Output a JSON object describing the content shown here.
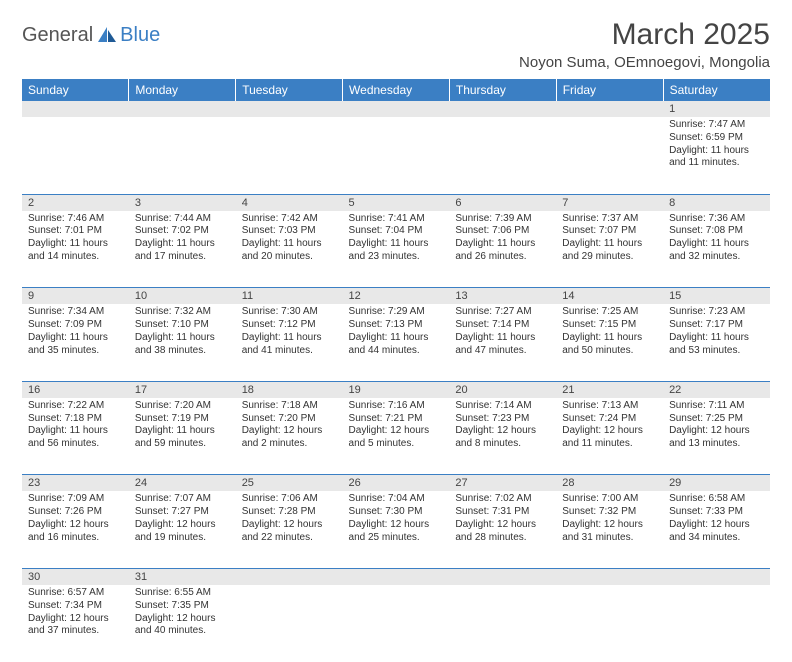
{
  "logo": {
    "general": "General",
    "blue": "Blue"
  },
  "title": "March 2025",
  "location": "Noyon Suma, OEmnoegovi, Mongolia",
  "colors": {
    "header_bg": "#3b7fc4",
    "header_text": "#ffffff",
    "daynum_bg": "#e8e8e8",
    "border": "#3b7fc4",
    "text": "#333333",
    "logo_gray": "#555555",
    "logo_blue": "#3b7fc4",
    "page_bg": "#ffffff"
  },
  "typography": {
    "title_fontsize": 30,
    "location_fontsize": 15,
    "header_fontsize": 12,
    "daynum_fontsize": 11,
    "cell_fontsize": 10,
    "logo_fontsize": 20
  },
  "dow": [
    "Sunday",
    "Monday",
    "Tuesday",
    "Wednesday",
    "Thursday",
    "Friday",
    "Saturday"
  ],
  "weeks": [
    {
      "nums": [
        "",
        "",
        "",
        "",
        "",
        "",
        "1"
      ],
      "cells": [
        null,
        null,
        null,
        null,
        null,
        null,
        {
          "sunrise": "Sunrise: 7:47 AM",
          "sunset": "Sunset: 6:59 PM",
          "day1": "Daylight: 11 hours",
          "day2": "and 11 minutes."
        }
      ]
    },
    {
      "nums": [
        "2",
        "3",
        "4",
        "5",
        "6",
        "7",
        "8"
      ],
      "cells": [
        {
          "sunrise": "Sunrise: 7:46 AM",
          "sunset": "Sunset: 7:01 PM",
          "day1": "Daylight: 11 hours",
          "day2": "and 14 minutes."
        },
        {
          "sunrise": "Sunrise: 7:44 AM",
          "sunset": "Sunset: 7:02 PM",
          "day1": "Daylight: 11 hours",
          "day2": "and 17 minutes."
        },
        {
          "sunrise": "Sunrise: 7:42 AM",
          "sunset": "Sunset: 7:03 PM",
          "day1": "Daylight: 11 hours",
          "day2": "and 20 minutes."
        },
        {
          "sunrise": "Sunrise: 7:41 AM",
          "sunset": "Sunset: 7:04 PM",
          "day1": "Daylight: 11 hours",
          "day2": "and 23 minutes."
        },
        {
          "sunrise": "Sunrise: 7:39 AM",
          "sunset": "Sunset: 7:06 PM",
          "day1": "Daylight: 11 hours",
          "day2": "and 26 minutes."
        },
        {
          "sunrise": "Sunrise: 7:37 AM",
          "sunset": "Sunset: 7:07 PM",
          "day1": "Daylight: 11 hours",
          "day2": "and 29 minutes."
        },
        {
          "sunrise": "Sunrise: 7:36 AM",
          "sunset": "Sunset: 7:08 PM",
          "day1": "Daylight: 11 hours",
          "day2": "and 32 minutes."
        }
      ]
    },
    {
      "nums": [
        "9",
        "10",
        "11",
        "12",
        "13",
        "14",
        "15"
      ],
      "cells": [
        {
          "sunrise": "Sunrise: 7:34 AM",
          "sunset": "Sunset: 7:09 PM",
          "day1": "Daylight: 11 hours",
          "day2": "and 35 minutes."
        },
        {
          "sunrise": "Sunrise: 7:32 AM",
          "sunset": "Sunset: 7:10 PM",
          "day1": "Daylight: 11 hours",
          "day2": "and 38 minutes."
        },
        {
          "sunrise": "Sunrise: 7:30 AM",
          "sunset": "Sunset: 7:12 PM",
          "day1": "Daylight: 11 hours",
          "day2": "and 41 minutes."
        },
        {
          "sunrise": "Sunrise: 7:29 AM",
          "sunset": "Sunset: 7:13 PM",
          "day1": "Daylight: 11 hours",
          "day2": "and 44 minutes."
        },
        {
          "sunrise": "Sunrise: 7:27 AM",
          "sunset": "Sunset: 7:14 PM",
          "day1": "Daylight: 11 hours",
          "day2": "and 47 minutes."
        },
        {
          "sunrise": "Sunrise: 7:25 AM",
          "sunset": "Sunset: 7:15 PM",
          "day1": "Daylight: 11 hours",
          "day2": "and 50 minutes."
        },
        {
          "sunrise": "Sunrise: 7:23 AM",
          "sunset": "Sunset: 7:17 PM",
          "day1": "Daylight: 11 hours",
          "day2": "and 53 minutes."
        }
      ]
    },
    {
      "nums": [
        "16",
        "17",
        "18",
        "19",
        "20",
        "21",
        "22"
      ],
      "cells": [
        {
          "sunrise": "Sunrise: 7:22 AM",
          "sunset": "Sunset: 7:18 PM",
          "day1": "Daylight: 11 hours",
          "day2": "and 56 minutes."
        },
        {
          "sunrise": "Sunrise: 7:20 AM",
          "sunset": "Sunset: 7:19 PM",
          "day1": "Daylight: 11 hours",
          "day2": "and 59 minutes."
        },
        {
          "sunrise": "Sunrise: 7:18 AM",
          "sunset": "Sunset: 7:20 PM",
          "day1": "Daylight: 12 hours",
          "day2": "and 2 minutes."
        },
        {
          "sunrise": "Sunrise: 7:16 AM",
          "sunset": "Sunset: 7:21 PM",
          "day1": "Daylight: 12 hours",
          "day2": "and 5 minutes."
        },
        {
          "sunrise": "Sunrise: 7:14 AM",
          "sunset": "Sunset: 7:23 PM",
          "day1": "Daylight: 12 hours",
          "day2": "and 8 minutes."
        },
        {
          "sunrise": "Sunrise: 7:13 AM",
          "sunset": "Sunset: 7:24 PM",
          "day1": "Daylight: 12 hours",
          "day2": "and 11 minutes."
        },
        {
          "sunrise": "Sunrise: 7:11 AM",
          "sunset": "Sunset: 7:25 PM",
          "day1": "Daylight: 12 hours",
          "day2": "and 13 minutes."
        }
      ]
    },
    {
      "nums": [
        "23",
        "24",
        "25",
        "26",
        "27",
        "28",
        "29"
      ],
      "cells": [
        {
          "sunrise": "Sunrise: 7:09 AM",
          "sunset": "Sunset: 7:26 PM",
          "day1": "Daylight: 12 hours",
          "day2": "and 16 minutes."
        },
        {
          "sunrise": "Sunrise: 7:07 AM",
          "sunset": "Sunset: 7:27 PM",
          "day1": "Daylight: 12 hours",
          "day2": "and 19 minutes."
        },
        {
          "sunrise": "Sunrise: 7:06 AM",
          "sunset": "Sunset: 7:28 PM",
          "day1": "Daylight: 12 hours",
          "day2": "and 22 minutes."
        },
        {
          "sunrise": "Sunrise: 7:04 AM",
          "sunset": "Sunset: 7:30 PM",
          "day1": "Daylight: 12 hours",
          "day2": "and 25 minutes."
        },
        {
          "sunrise": "Sunrise: 7:02 AM",
          "sunset": "Sunset: 7:31 PM",
          "day1": "Daylight: 12 hours",
          "day2": "and 28 minutes."
        },
        {
          "sunrise": "Sunrise: 7:00 AM",
          "sunset": "Sunset: 7:32 PM",
          "day1": "Daylight: 12 hours",
          "day2": "and 31 minutes."
        },
        {
          "sunrise": "Sunrise: 6:58 AM",
          "sunset": "Sunset: 7:33 PM",
          "day1": "Daylight: 12 hours",
          "day2": "and 34 minutes."
        }
      ]
    },
    {
      "nums": [
        "30",
        "31",
        "",
        "",
        "",
        "",
        ""
      ],
      "cells": [
        {
          "sunrise": "Sunrise: 6:57 AM",
          "sunset": "Sunset: 7:34 PM",
          "day1": "Daylight: 12 hours",
          "day2": "and 37 minutes."
        },
        {
          "sunrise": "Sunrise: 6:55 AM",
          "sunset": "Sunset: 7:35 PM",
          "day1": "Daylight: 12 hours",
          "day2": "and 40 minutes."
        },
        null,
        null,
        null,
        null,
        null
      ]
    }
  ]
}
